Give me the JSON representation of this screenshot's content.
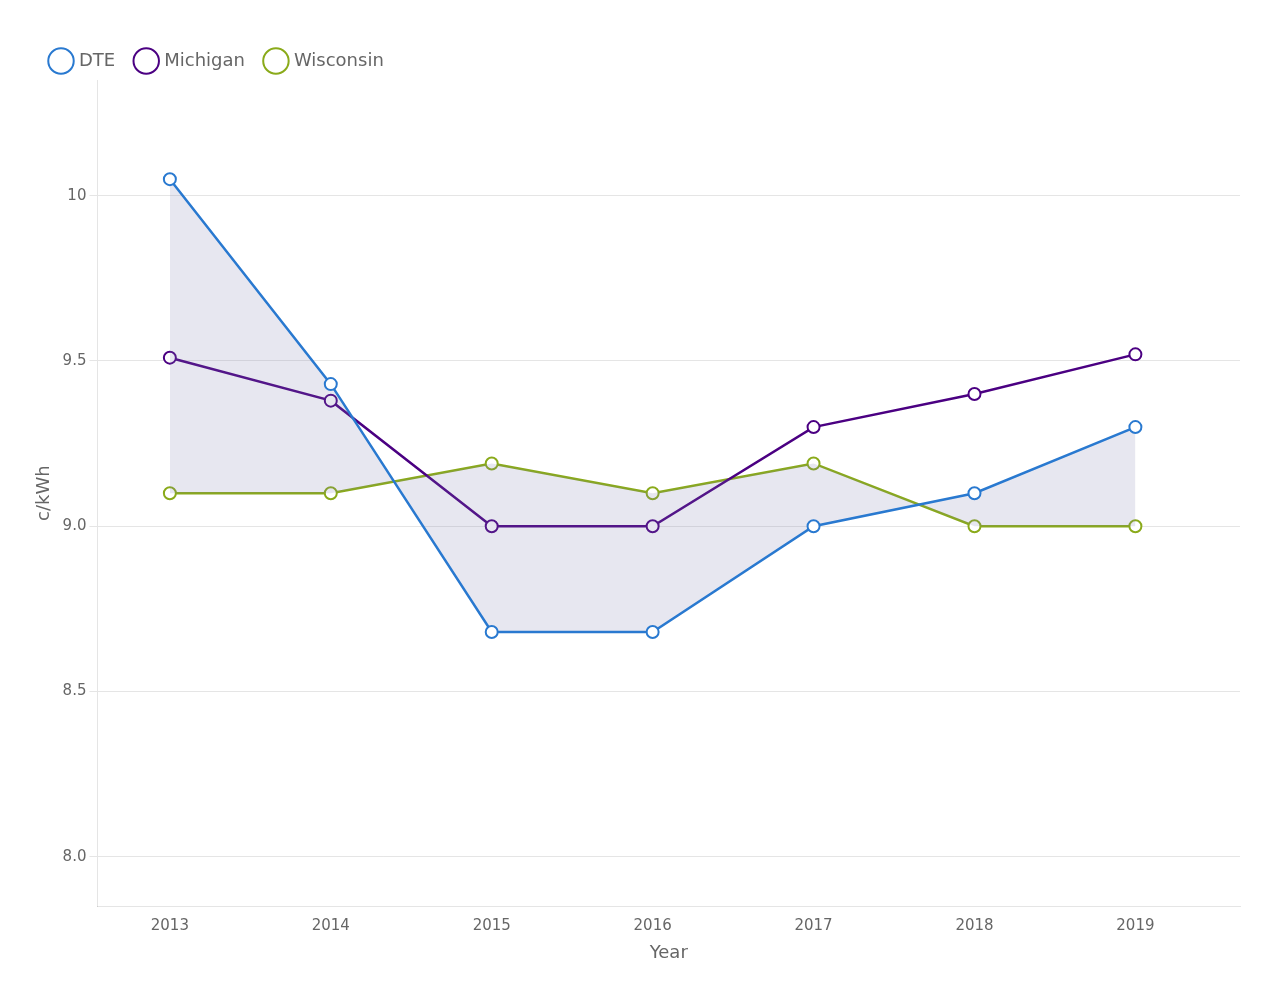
{
  "chart_data": {
    "type": "line",
    "x_label": "Year",
    "y_label": "c/kWh",
    "x": [
      2013,
      2014,
      2015,
      2016,
      2017,
      2018,
      2019
    ],
    "series": [
      {
        "name": "DTE",
        "color": "#2979d0",
        "marker": "circle",
        "line_style": "solid",
        "values": [
          10.05,
          9.43,
          8.68,
          8.68,
          9.0,
          9.1,
          9.3
        ]
      },
      {
        "name": "Michigan",
        "color": "#4B0082",
        "marker": "circle",
        "line_style": "solid",
        "values": [
          9.51,
          9.38,
          9.0,
          9.0,
          9.3,
          9.4,
          9.52
        ]
      },
      {
        "name": "Wisconsin",
        "color": "#8aaa1a",
        "marker": "circle",
        "line_style": "solid",
        "values": [
          9.1,
          9.1,
          9.19,
          9.1,
          9.19,
          9.0,
          9.0
        ]
      }
    ],
    "xlim": [
      2012.55,
      2019.65
    ],
    "xticks": [
      2013,
      2014,
      2015,
      2016,
      2017,
      2018,
      2019
    ],
    "ylim": [
      7.85,
      10.35
    ],
    "yticks": [
      {
        "value": 8.0,
        "label": "8.0"
      },
      8.5,
      {
        "value": 9.0,
        "label": "9.0"
      },
      9.5,
      10
    ],
    "grid": "y",
    "legend": "upper left"
  }
}
